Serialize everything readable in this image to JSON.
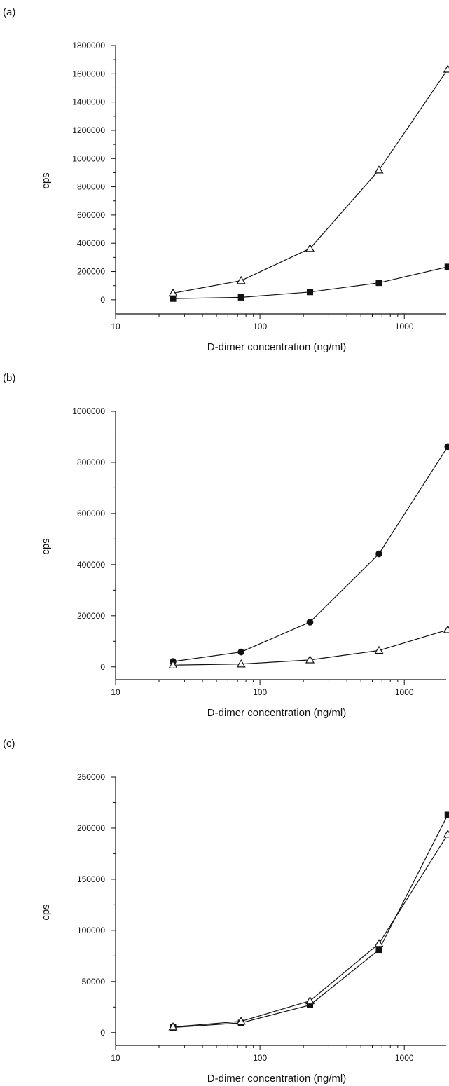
{
  "chart_data": [
    {
      "type": "line",
      "panel_label": "(a)",
      "xlabel": "D-dimer concentration (ng/ml)",
      "ylabel": "cps",
      "xscale": "log",
      "xlim": [
        10,
        1950
      ],
      "ylim": [
        -100000,
        1800000
      ],
      "x_ticks": [
        10,
        100,
        1000
      ],
      "x_tick_labels": [
        "10",
        "100",
        "1000"
      ],
      "y_ticks": [
        0,
        200000,
        400000,
        600000,
        800000,
        1000000,
        1200000,
        1400000,
        1600000,
        1800000
      ],
      "y_tick_labels": [
        "0",
        "200000",
        "400000",
        "600000",
        "800000",
        "1000000",
        "1200000",
        "1400000",
        "1600000",
        "1800000"
      ],
      "legend": "none",
      "grid": false,
      "x": [
        25,
        74,
        222,
        667,
        2000
      ],
      "series": [
        {
          "marker": "open-triangle",
          "values": [
            47000,
            135000,
            363000,
            918000,
            1632000
          ]
        },
        {
          "marker": "filled-square",
          "values": [
            8000,
            17000,
            55000,
            120000,
            233000
          ]
        }
      ]
    },
    {
      "type": "line",
      "panel_label": "(b)",
      "xlabel": "D-dimer concentration (ng/ml)",
      "ylabel": "cps",
      "xscale": "log",
      "xlim": [
        10,
        1950
      ],
      "ylim": [
        -50000,
        1000000
      ],
      "x_ticks": [
        10,
        100,
        1000
      ],
      "x_tick_labels": [
        "10",
        "100",
        "1000"
      ],
      "y_ticks": [
        0,
        200000,
        400000,
        600000,
        800000,
        1000000
      ],
      "y_tick_labels": [
        "0",
        "200000",
        "400000",
        "600000",
        "800000",
        "1000000"
      ],
      "legend": "none",
      "grid": false,
      "x": [
        25,
        74,
        222,
        667,
        2000
      ],
      "series": [
        {
          "marker": "filled-circle",
          "values": [
            21000,
            58000,
            175000,
            442000,
            862000
          ]
        },
        {
          "marker": "open-triangle",
          "values": [
            7000,
            11000,
            27000,
            64000,
            145000
          ]
        }
      ]
    },
    {
      "type": "line",
      "panel_label": "(c)",
      "xlabel": "D-dimer concentration (ng/ml)",
      "ylabel": "cps",
      "xscale": "log",
      "xlim": [
        10,
        1950
      ],
      "ylim": [
        -12500,
        250000
      ],
      "x_ticks": [
        10,
        100,
        1000
      ],
      "x_tick_labels": [
        "10",
        "100",
        "1000"
      ],
      "y_ticks": [
        0,
        50000,
        100000,
        150000,
        200000,
        250000
      ],
      "y_tick_labels": [
        "0",
        "50000",
        "100000",
        "150000",
        "200000",
        "250000"
      ],
      "legend": "none",
      "grid": false,
      "x": [
        25,
        74,
        222,
        667,
        2000
      ],
      "series": [
        {
          "marker": "filled-square",
          "values": [
            5000,
            9500,
            27000,
            81000,
            213000
          ]
        },
        {
          "marker": "open-triangle",
          "values": [
            5500,
            11000,
            31000,
            87000,
            194000
          ]
        }
      ]
    }
  ]
}
